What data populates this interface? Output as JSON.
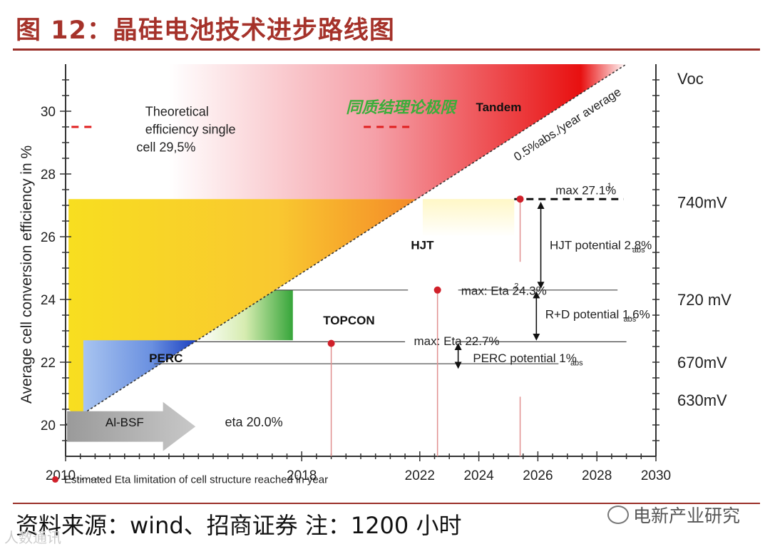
{
  "figure_title": "图 12：晶硅电池技术进步路线图",
  "source_note": "资料来源：wind、招商证券 注：1200 小时",
  "watermark": "电新产业研究",
  "corner_mark": "人数通讯",
  "chart_data": {
    "type": "area",
    "ylabel": "Average cell conversion efficiency in %",
    "x_ticks": [
      2010,
      2018,
      2022,
      2024,
      2026,
      2028,
      2030
    ],
    "x_tick_labels": [
      "2010……",
      "2018",
      "2022",
      "2024",
      "2026",
      "2028",
      "2030"
    ],
    "xlim": [
      2010,
      2030
    ],
    "y_ticks": [
      20,
      22,
      24,
      26,
      28,
      30
    ],
    "ylim": [
      19.0,
      31.5
    ],
    "right_axis_title": "Voc",
    "right_axis_labels": [
      {
        "label": "740mV",
        "y": 27.1
      },
      {
        "label": "720 mV",
        "y": 24.0
      },
      {
        "label": "670mV",
        "y": 22.0
      },
      {
        "label": "630mV",
        "y": 20.8
      }
    ],
    "trend_line": {
      "label": "0.5%abs./year average",
      "x": [
        2010,
        2029
      ],
      "y": [
        20.0,
        31.5
      ]
    },
    "regions": [
      {
        "name": "Al-BSF",
        "label": "Al-BSF",
        "efficiency_label": "eta 20.0%"
      },
      {
        "name": "PERC",
        "label": "PERC",
        "max_value": 22.7
      },
      {
        "name": "TOPCON",
        "label": "TOPCON",
        "max_value": 24.3
      },
      {
        "name": "HJT",
        "label": "HJT",
        "max_value": 27.1
      },
      {
        "name": "Tandem",
        "label": "Tandem"
      }
    ],
    "limit_points": [
      {
        "x": 2019.0,
        "y": 22.6
      },
      {
        "x": 2022.6,
        "y": 24.3
      },
      {
        "x": 2025.4,
        "y": 27.2
      }
    ],
    "annotations": {
      "theoretical": [
        "Theoretical",
        "efficiency single",
        "cell 29,5%"
      ],
      "theoretical_value": 29.5,
      "chinese_limit": "同质结理论极限",
      "max_271": "max 27.1%",
      "max_271_sup": "1",
      "max_243": "max: Eta 24.3%",
      "max_243_sup": "2",
      "max_227": "max: Eta 22.7%",
      "hjt_potential": "HJT potential  2.8%",
      "rd_potential": "R+D potential 1.6%",
      "perc_potential": "PERC potential 1%",
      "abs_sub": "abs",
      "legend_note": "Estimated Eta limitation of cell structure reached in year"
    },
    "colors": {
      "red_dot": "#d0202a",
      "dashed_red": "#e02020",
      "green_label": "#3aae3a"
    }
  }
}
